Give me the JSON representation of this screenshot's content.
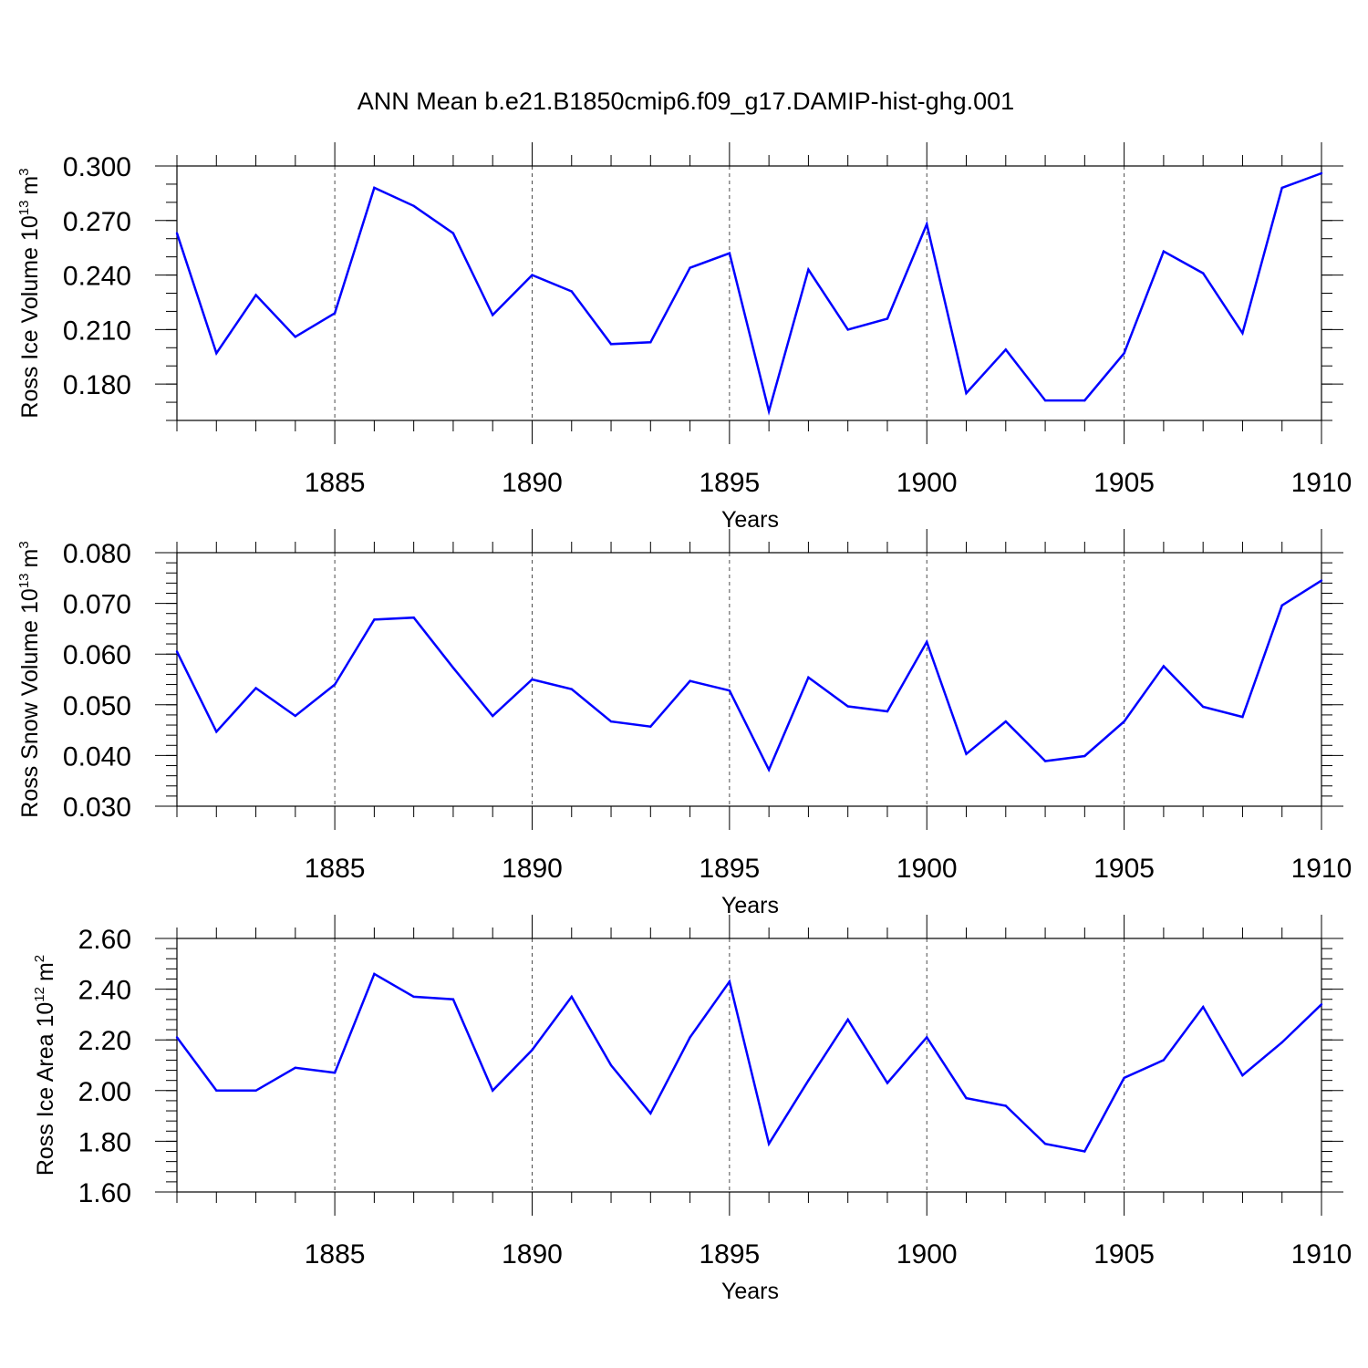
{
  "title": "ANN Mean b.e21.B1850cmip6.f09_g17.DAMIP-hist-ghg.001",
  "colors": {
    "line": "#0000ff",
    "axis": "#000000",
    "grid": "#000000"
  },
  "chart_data": [
    {
      "type": "line",
      "ylabel_main": "Ross Ice Volume 10",
      "ylabel_exp": "13",
      "ylabel_unit": "m",
      "ylabel_unit_exp": "3",
      "xlabel": "Years",
      "xlim": [
        1881,
        1910
      ],
      "ylim": [
        0.16,
        0.3
      ],
      "yticks": [
        0.18,
        0.21,
        0.24,
        0.27,
        0.3
      ],
      "ytick_labels": [
        "0.180",
        "0.210",
        "0.240",
        "0.270",
        "0.300"
      ],
      "yminor_step": 0.01,
      "xticks": [
        1885,
        1890,
        1895,
        1900,
        1905,
        1910
      ],
      "xtick_labels": [
        "1885",
        "1890",
        "1895",
        "1900",
        "1905",
        "1910"
      ],
      "grid": "dashed vertical at major x ticks",
      "x": [
        1881,
        1882,
        1883,
        1884,
        1885,
        1886,
        1887,
        1888,
        1889,
        1890,
        1891,
        1892,
        1893,
        1894,
        1895,
        1896,
        1897,
        1898,
        1899,
        1900,
        1901,
        1902,
        1903,
        1904,
        1905,
        1906,
        1907,
        1908,
        1909,
        1910
      ],
      "values": [
        0.263,
        0.197,
        0.229,
        0.206,
        0.219,
        0.288,
        0.278,
        0.263,
        0.218,
        0.24,
        0.231,
        0.202,
        0.203,
        0.244,
        0.252,
        0.165,
        0.243,
        0.21,
        0.216,
        0.268,
        0.175,
        0.199,
        0.171,
        0.171,
        0.197,
        0.253,
        0.241,
        0.208,
        0.288,
        0.296
      ]
    },
    {
      "type": "line",
      "ylabel_main": "Ross Snow Volume 10",
      "ylabel_exp": "13",
      "ylabel_unit": "m",
      "ylabel_unit_exp": "3",
      "xlabel": "Years",
      "xlim": [
        1881,
        1910
      ],
      "ylim": [
        0.03,
        0.08
      ],
      "yticks": [
        0.03,
        0.04,
        0.05,
        0.06,
        0.07,
        0.08
      ],
      "ytick_labels": [
        "0.030",
        "0.040",
        "0.050",
        "0.060",
        "0.070",
        "0.080"
      ],
      "yminor_step": 0.002,
      "xticks": [
        1885,
        1890,
        1895,
        1900,
        1905,
        1910
      ],
      "xtick_labels": [
        "1885",
        "1890",
        "1895",
        "1900",
        "1905",
        "1910"
      ],
      "grid": "dashed vertical at major x ticks",
      "x": [
        1881,
        1882,
        1883,
        1884,
        1885,
        1886,
        1887,
        1888,
        1889,
        1890,
        1891,
        1892,
        1893,
        1894,
        1895,
        1896,
        1897,
        1898,
        1899,
        1900,
        1901,
        1902,
        1903,
        1904,
        1905,
        1906,
        1907,
        1908,
        1909,
        1910
      ],
      "values": [
        0.0605,
        0.0447,
        0.0533,
        0.0478,
        0.054,
        0.0668,
        0.0672,
        0.0573,
        0.0478,
        0.055,
        0.0531,
        0.0467,
        0.0457,
        0.0547,
        0.0528,
        0.0372,
        0.0554,
        0.0497,
        0.0487,
        0.0624,
        0.0403,
        0.0467,
        0.0389,
        0.0399,
        0.0467,
        0.0576,
        0.0496,
        0.0476,
        0.0696,
        0.0745
      ]
    },
    {
      "type": "line",
      "ylabel_main": "Ross Ice Area 10",
      "ylabel_exp": "12",
      "ylabel_unit": "m",
      "ylabel_unit_exp": "2",
      "xlabel": "Years",
      "xlim": [
        1881,
        1910
      ],
      "ylim": [
        1.6,
        2.6
      ],
      "yticks": [
        1.6,
        1.8,
        2.0,
        2.2,
        2.4,
        2.6
      ],
      "ytick_labels": [
        "1.60",
        "1.80",
        "2.00",
        "2.20",
        "2.40",
        "2.60"
      ],
      "yminor_step": 0.04,
      "xticks": [
        1885,
        1890,
        1895,
        1900,
        1905,
        1910
      ],
      "xtick_labels": [
        "1885",
        "1890",
        "1895",
        "1900",
        "1905",
        "1910"
      ],
      "grid": "dashed vertical at major x ticks",
      "x": [
        1881,
        1882,
        1883,
        1884,
        1885,
        1886,
        1887,
        1888,
        1889,
        1890,
        1891,
        1892,
        1893,
        1894,
        1895,
        1896,
        1897,
        1898,
        1899,
        1900,
        1901,
        1902,
        1903,
        1904,
        1905,
        1906,
        1907,
        1908,
        1909,
        1910
      ],
      "values": [
        2.21,
        2.0,
        2.0,
        2.09,
        2.07,
        2.46,
        2.37,
        2.36,
        2.0,
        2.16,
        2.37,
        2.1,
        1.91,
        2.21,
        2.43,
        1.79,
        2.04,
        2.28,
        2.03,
        2.21,
        1.97,
        1.94,
        1.79,
        1.76,
        2.05,
        2.12,
        2.33,
        2.06,
        2.19,
        2.34
      ]
    }
  ]
}
